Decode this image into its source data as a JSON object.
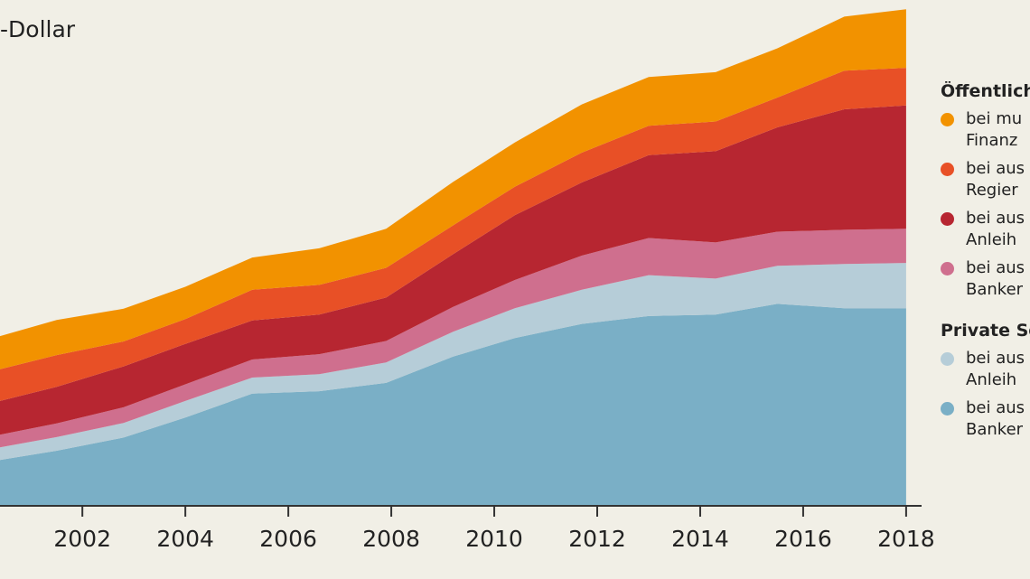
{
  "unit_label": "-Dollar",
  "legend": {
    "groups": [
      {
        "title": "Öffentlich",
        "items": [
          {
            "series": 5,
            "text": "bei mu\nFinanz"
          },
          {
            "series": 4,
            "text": "bei aus\nRegier"
          },
          {
            "series": 3,
            "text": "bei aus\nAnleih"
          },
          {
            "series": 2,
            "text": "bei aus\nBanker"
          }
        ]
      },
      {
        "title": "Private Se",
        "items": [
          {
            "series": 1,
            "text": "bei aus\nAnleih"
          },
          {
            "series": 0,
            "text": "bei aus\nBanker"
          }
        ]
      }
    ]
  },
  "chart_data": {
    "type": "area",
    "stacked": true,
    "title": "",
    "xlabel": "",
    "ylabel": "-Dollar",
    "x": [
      2000.4,
      2001.5,
      2002.8,
      2004.0,
      2005.3,
      2006.6,
      2007.9,
      2009.2,
      2010.4,
      2011.7,
      2013.0,
      2014.3,
      2015.5,
      2016.8,
      2018.0
    ],
    "xlim": [
      2000.4,
      2018.3
    ],
    "x_ticks": [
      "2002",
      "2004",
      "2006",
      "2008",
      "2010",
      "2012",
      "2014",
      "2016",
      "2018"
    ],
    "ylim": [
      0,
      100
    ],
    "grid": false,
    "series": [
      {
        "name": "bei aus Banker (Private)",
        "color": "#7aafc6",
        "values": [
          9.4,
          11.3,
          14.0,
          18.1,
          23.0,
          23.5,
          25.2,
          30.6,
          34.4,
          37.3,
          38.9,
          39.2,
          41.4,
          40.5,
          40.5
        ]
      },
      {
        "name": "bei aus Anleih (Private)",
        "color": "#b6cdd8",
        "values": [
          2.6,
          2.8,
          3.0,
          3.4,
          3.3,
          3.5,
          4.2,
          5.1,
          6.1,
          7.0,
          8.4,
          7.4,
          7.8,
          9.1,
          9.3
        ]
      },
      {
        "name": "bei aus Banker (Öffentlich)",
        "color": "#cf6f8e",
        "values": [
          2.6,
          2.8,
          3.2,
          3.4,
          3.7,
          4.1,
          4.4,
          5.1,
          5.8,
          7.0,
          7.6,
          7.4,
          7.0,
          7.0,
          7.0
        ]
      },
      {
        "name": "bei aus Anleih (Öffentlich)",
        "color": "#b72631",
        "values": [
          6.9,
          7.5,
          8.4,
          8.3,
          8.0,
          8.1,
          8.9,
          10.8,
          13.3,
          15.0,
          17.0,
          18.7,
          21.4,
          24.7,
          25.3
        ]
      },
      {
        "name": "bei aus Regier (Öffentlich)",
        "color": "#e85026",
        "values": [
          6.5,
          6.5,
          5.1,
          5.1,
          6.3,
          6.1,
          6.1,
          5.9,
          5.8,
          6.1,
          6.0,
          6.1,
          6.1,
          7.9,
          7.7
        ]
      },
      {
        "name": "bei mu Finanz (Öffentlich)",
        "color": "#f29200",
        "values": [
          6.8,
          7.2,
          6.7,
          6.6,
          6.6,
          7.5,
          8.0,
          8.9,
          9.1,
          9.9,
          10.0,
          10.1,
          10.1,
          11.1,
          12.0
        ]
      }
    ]
  }
}
